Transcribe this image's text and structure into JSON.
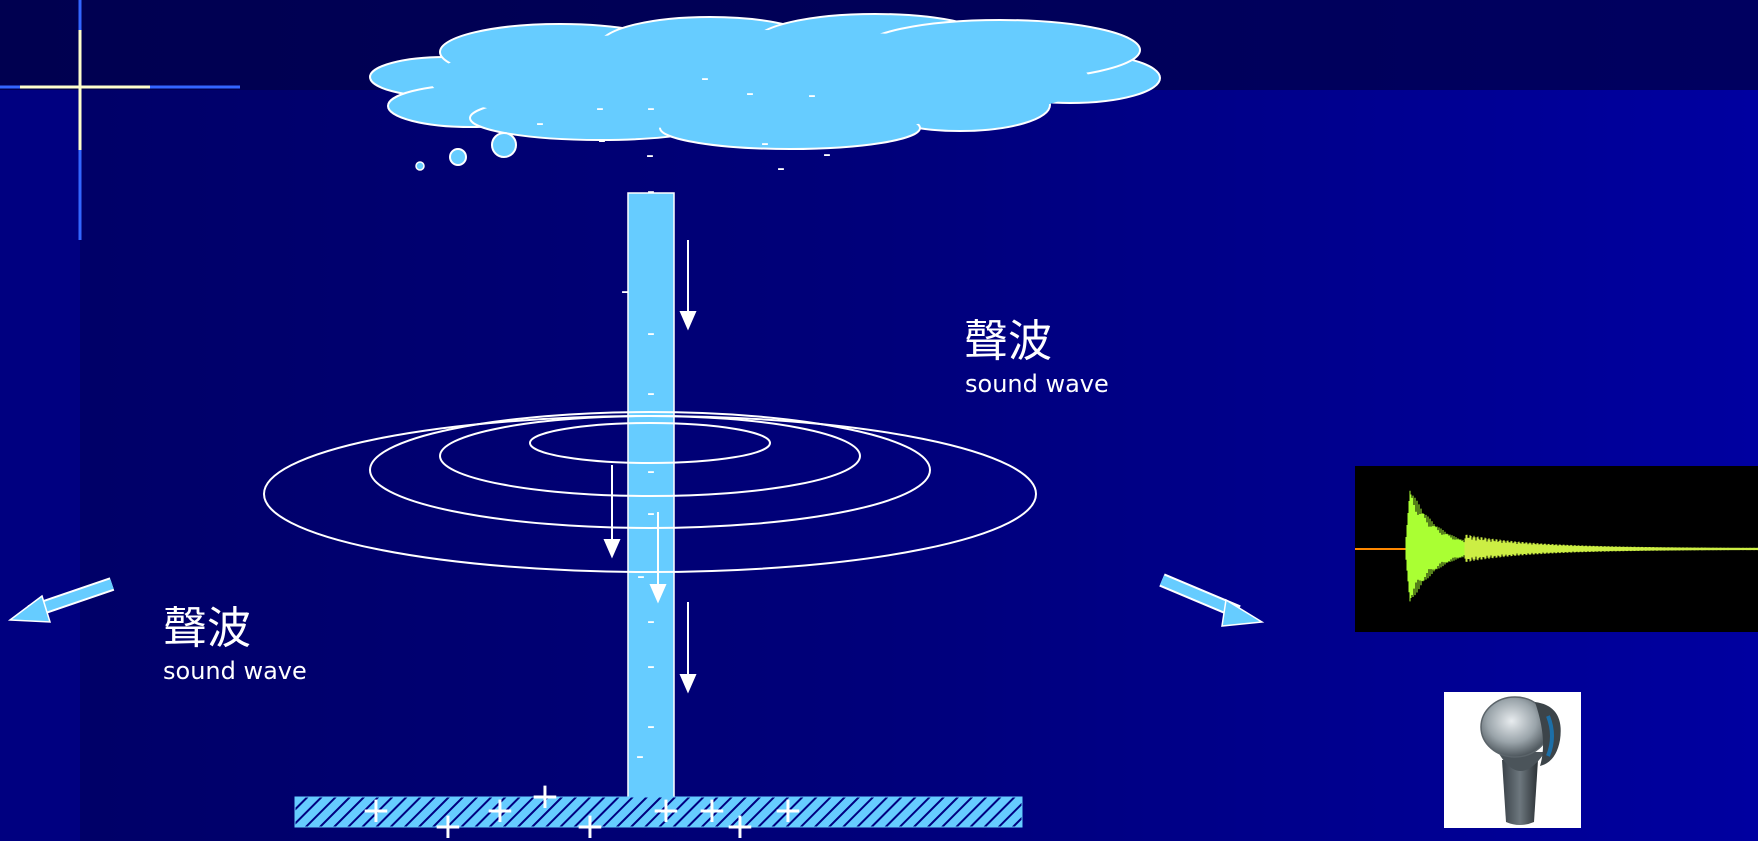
{
  "labels": {
    "right": {
      "zh": "聲波",
      "en": "sound wave"
    },
    "left": {
      "zh": "聲波",
      "en": "sound wave"
    }
  },
  "charges": {
    "negative": "-",
    "positive": "+"
  },
  "colors": {
    "background": "#000070",
    "cloud": "#66ccff",
    "bolt": "#66ccff",
    "arrow": "#66ccff",
    "waveform": "#99ff33",
    "waveform_baseline": "#ff8800"
  },
  "icons": {
    "cloud": "cloud-icon",
    "lightning": "lightning-bolt-icon",
    "microphone": "microphone-icon"
  }
}
